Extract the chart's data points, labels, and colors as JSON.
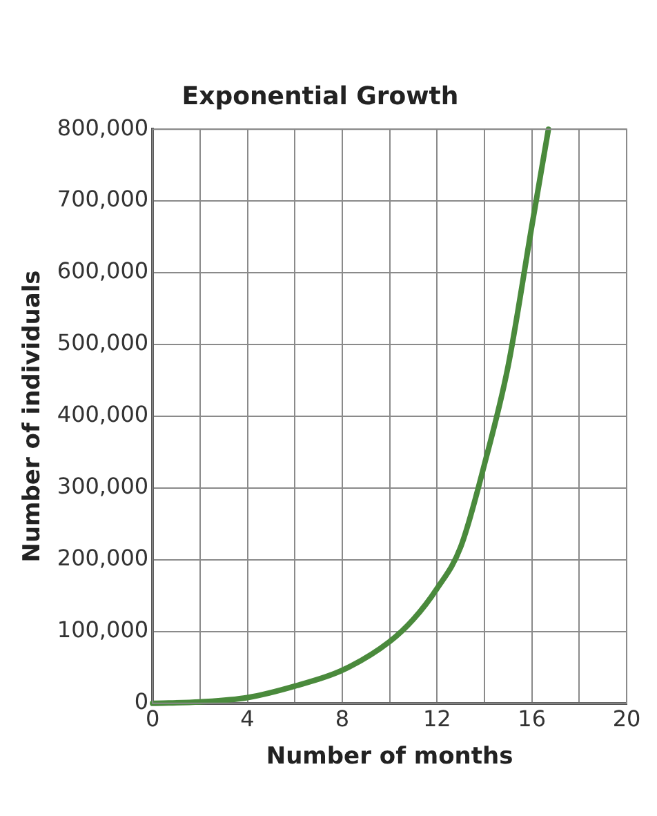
{
  "chart_data": {
    "type": "line",
    "title": "Exponential Growth",
    "xlabel": "Number of months",
    "ylabel": "Number of individuals",
    "x": [
      0,
      2,
      4,
      6,
      8,
      10,
      11,
      12,
      13,
      14,
      15,
      16,
      16.7
    ],
    "series": [
      {
        "color": "#4a8a3c",
        "values": [
          0,
          2000,
          8000,
          24000,
          46000,
          86000,
          117000,
          160000,
          218000,
          333000,
          470000,
          665000,
          800000
        ]
      }
    ],
    "xlim": [
      0,
      20
    ],
    "xticks": [
      0,
      {
        "value": 2,
        "label": null
      },
      4,
      {
        "value": 6,
        "label": null
      },
      8,
      {
        "value": 10,
        "label": null
      },
      12,
      {
        "value": 14,
        "label": null
      },
      16,
      {
        "value": 18,
        "label": null
      },
      20
    ],
    "ylim": [
      0,
      800000
    ],
    "yticks": [
      0,
      {
        "value": 100000,
        "label": "100,000"
      },
      {
        "value": 200000,
        "label": "200,000"
      },
      {
        "value": 300000,
        "label": "300,000"
      },
      {
        "value": 400000,
        "label": "400,000"
      },
      {
        "value": 500000,
        "label": "500,000"
      },
      {
        "value": 600000,
        "label": "600,000"
      },
      {
        "value": 700000,
        "label": "700,000"
      },
      {
        "value": 800000,
        "label": "800,000"
      }
    ],
    "grid": true,
    "legend": false,
    "marker": "none",
    "line_style": "solid"
  }
}
